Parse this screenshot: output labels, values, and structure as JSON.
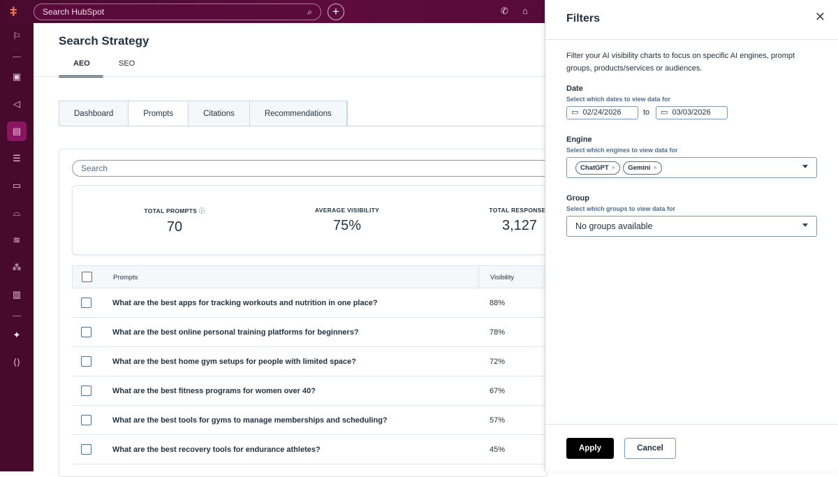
{
  "topbar": {
    "search_placeholder": "Search HubSpot"
  },
  "page": {
    "title": "Search Strategy",
    "tabs": [
      "AEO",
      "SEO"
    ],
    "subtabs": [
      "Dashboard",
      "Prompts",
      "Citations",
      "Recommendations"
    ],
    "search_placeholder": "Search"
  },
  "stats": [
    {
      "label": "TOTAL PROMPTS",
      "value": "70"
    },
    {
      "label": "AVERAGE VISIBILITY",
      "value": "75%"
    },
    {
      "label": "TOTAL RESPONSES",
      "value": "3,127"
    }
  ],
  "table": {
    "headers": [
      "Prompts",
      "Visibility"
    ],
    "rows": [
      {
        "prompt": "What are the best apps for tracking workouts and nutrition in one place?",
        "visibility": "88%"
      },
      {
        "prompt": "What are the best online personal training platforms for beginners?",
        "visibility": "78%"
      },
      {
        "prompt": "What are the best home gym setups for people with limited space?",
        "visibility": "72%"
      },
      {
        "prompt": "What are the best fitness programs for women over 40?",
        "visibility": "67%"
      },
      {
        "prompt": "What are the best tools for gyms to manage memberships and scheduling?",
        "visibility": "57%"
      },
      {
        "prompt": "What are the best recovery tools for endurance athletes?",
        "visibility": "45%"
      }
    ]
  },
  "filters": {
    "title": "Filters",
    "description": "Filter your AI visibility charts to focus on specific AI engines, prompt groups, products/services or audiences.",
    "date": {
      "label": "Date",
      "help": "Select which dates to view data for",
      "from": "02/24/2026",
      "to_label": "to",
      "to": "03/03/2026"
    },
    "engine": {
      "label": "Engine",
      "help": "Select which engines to view data for",
      "selected": [
        "ChatGPT",
        "Gemini"
      ]
    },
    "group": {
      "label": "Group",
      "help": "Select which groups to view data for",
      "value": "No groups available"
    },
    "apply": "Apply",
    "cancel": "Cancel"
  },
  "colors": {
    "nav": "#470a2d",
    "accent": "#ff7a59",
    "active_nav": "#8a1561"
  }
}
